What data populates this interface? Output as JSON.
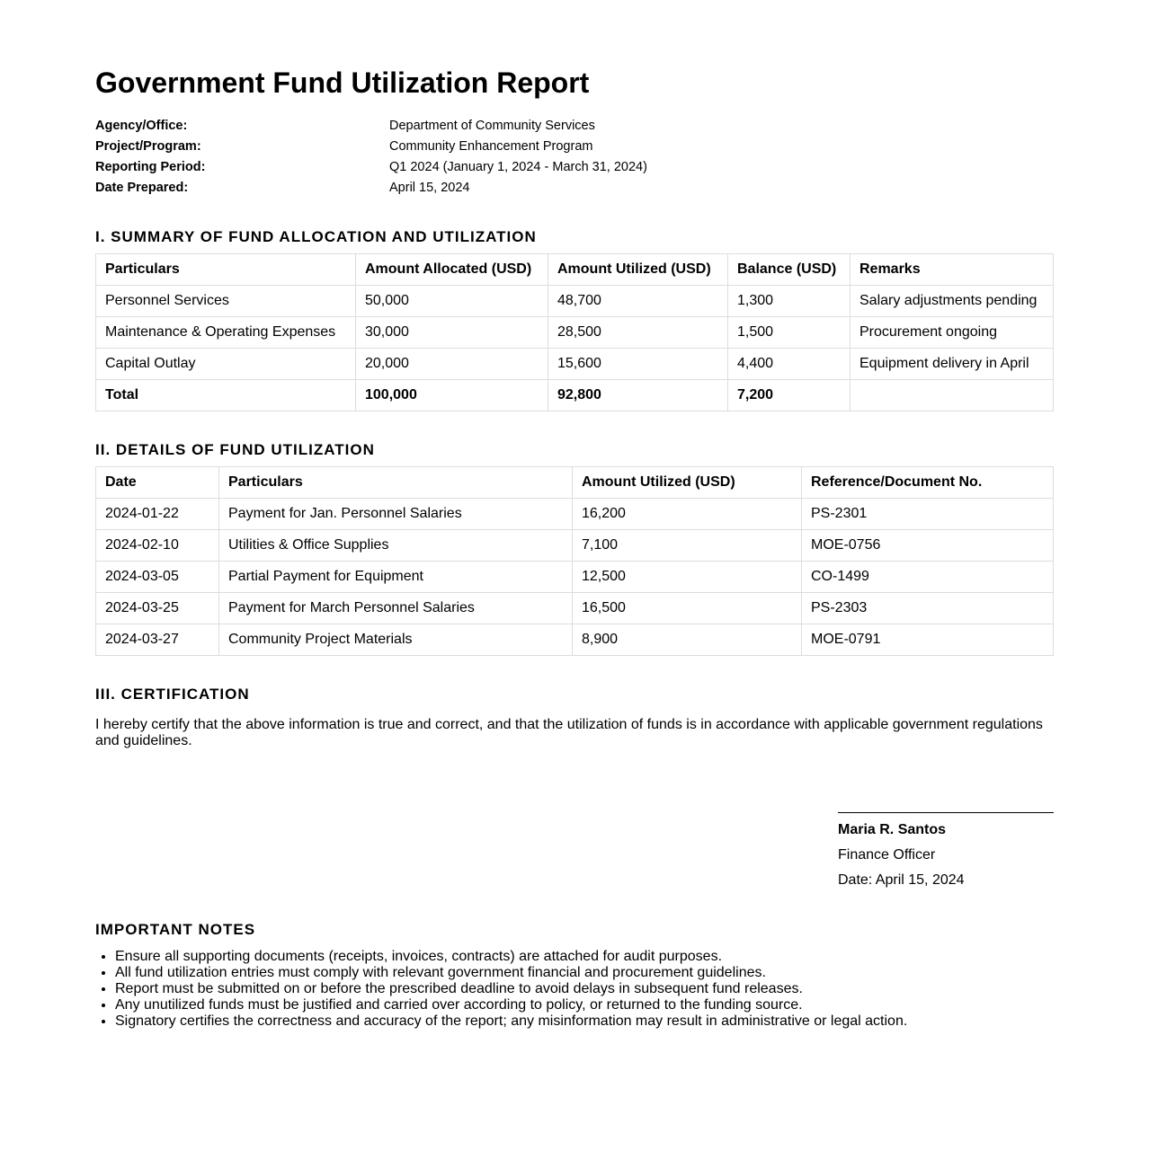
{
  "title": "Government Fund Utilization Report",
  "meta": [
    {
      "label": "Agency/Office:",
      "value": "Department of Community Services"
    },
    {
      "label": "Project/Program:",
      "value": "Community Enhancement Program"
    },
    {
      "label": "Reporting Period:",
      "value": "Q1 2024 (January 1, 2024 - March 31, 2024)"
    },
    {
      "label": "Date Prepared:",
      "value": "April 15, 2024"
    }
  ],
  "summary": {
    "heading": "I. SUMMARY OF FUND ALLOCATION AND UTILIZATION",
    "headers": [
      "Particulars",
      "Amount Allocated (USD)",
      "Amount Utilized (USD)",
      "Balance (USD)",
      "Remarks"
    ],
    "rows": [
      [
        "Personnel Services",
        "50,000",
        "48,700",
        "1,300",
        "Salary adjustments pending"
      ],
      [
        "Maintenance & Operating Expenses",
        "30,000",
        "28,500",
        "1,500",
        "Procurement ongoing"
      ],
      [
        "Capital Outlay",
        "20,000",
        "15,600",
        "4,400",
        "Equipment delivery in April"
      ],
      [
        "Total",
        "100,000",
        "92,800",
        "7,200",
        ""
      ]
    ]
  },
  "details": {
    "heading": "II. DETAILS OF FUND UTILIZATION",
    "headers": [
      "Date",
      "Particulars",
      "Amount Utilized (USD)",
      "Reference/Document No."
    ],
    "rows": [
      [
        "2024-01-22",
        "Payment for Jan. Personnel Salaries",
        "16,200",
        "PS-2301"
      ],
      [
        "2024-02-10",
        "Utilities & Office Supplies",
        "7,100",
        "MOE-0756"
      ],
      [
        "2024-03-05",
        "Partial Payment for Equipment",
        "12,500",
        "CO-1499"
      ],
      [
        "2024-03-25",
        "Payment for March Personnel Salaries",
        "16,500",
        "PS-2303"
      ],
      [
        "2024-03-27",
        "Community Project Materials",
        "8,900",
        "MOE-0791"
      ]
    ]
  },
  "certification": {
    "heading": "III. CERTIFICATION",
    "text": "I hereby certify that the above information is true and correct, and that the utilization of funds is in accordance with applicable government regulations and guidelines."
  },
  "signatory": {
    "name": "Maria R. Santos",
    "position": "Finance Officer",
    "date": "Date: April 15, 2024"
  },
  "notes": {
    "heading": "IMPORTANT NOTES",
    "items": [
      "Ensure all supporting documents (receipts, invoices, contracts) are attached for audit purposes.",
      "All fund utilization entries must comply with relevant government financial and procurement guidelines.",
      "Report must be submitted on or before the prescribed deadline to avoid delays in subsequent fund releases.",
      "Any unutilized funds must be justified and carried over according to policy, or returned to the funding source.",
      "Signatory certifies the correctness and accuracy of the report; any misinformation may result in administrative or legal action."
    ]
  }
}
